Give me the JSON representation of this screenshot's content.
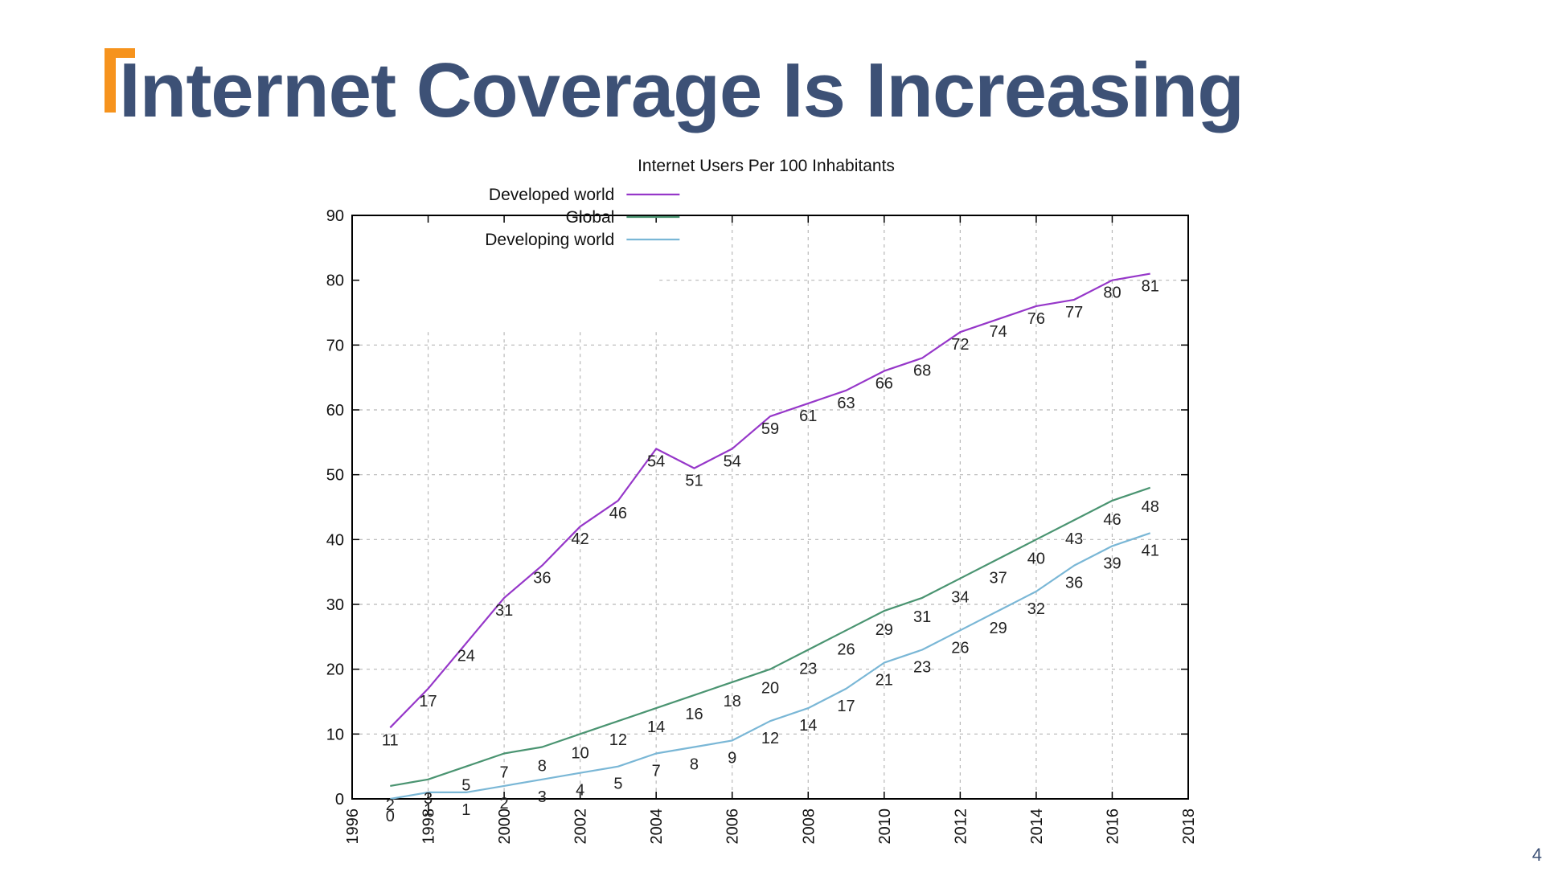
{
  "slide": {
    "title": "Internet Coverage Is Increasing",
    "page_number": "4",
    "accent_color": "#f6931d",
    "title_color": "#3d5176"
  },
  "chart_data": {
    "type": "line",
    "title": "Internet Users Per 100 Inhabitants",
    "xlabel": "",
    "ylabel": "",
    "xlim": [
      1996,
      2018
    ],
    "ylim": [
      0,
      90
    ],
    "x_ticks": [
      1996,
      1998,
      2000,
      2002,
      2004,
      2006,
      2008,
      2010,
      2012,
      2014,
      2016,
      2018
    ],
    "y_ticks": [
      0,
      10,
      20,
      30,
      40,
      50,
      60,
      70,
      80,
      90
    ],
    "grid": true,
    "legend_position": "top-left",
    "x": [
      1997,
      1998,
      1999,
      2000,
      2001,
      2002,
      2003,
      2004,
      2005,
      2006,
      2007,
      2008,
      2009,
      2010,
      2011,
      2012,
      2013,
      2014,
      2015,
      2016,
      2017
    ],
    "series": [
      {
        "name": "Developed world",
        "color": "#9637c9",
        "values": [
          11,
          17,
          24,
          31,
          36,
          42,
          46,
          54,
          51,
          54,
          59,
          61,
          63,
          66,
          68,
          72,
          74,
          76,
          77,
          80,
          81
        ]
      },
      {
        "name": "Global",
        "color": "#4a9471",
        "values": [
          2,
          3,
          5,
          7,
          8,
          10,
          12,
          14,
          16,
          18,
          20,
          23,
          26,
          29,
          31,
          34,
          37,
          40,
          43,
          46,
          48
        ]
      },
      {
        "name": "Developing world",
        "color": "#7ab7d6",
        "values": [
          0,
          1,
          1,
          2,
          3,
          4,
          5,
          7,
          8,
          9,
          12,
          14,
          17,
          21,
          23,
          26,
          29,
          32,
          36,
          39,
          41
        ]
      }
    ]
  }
}
